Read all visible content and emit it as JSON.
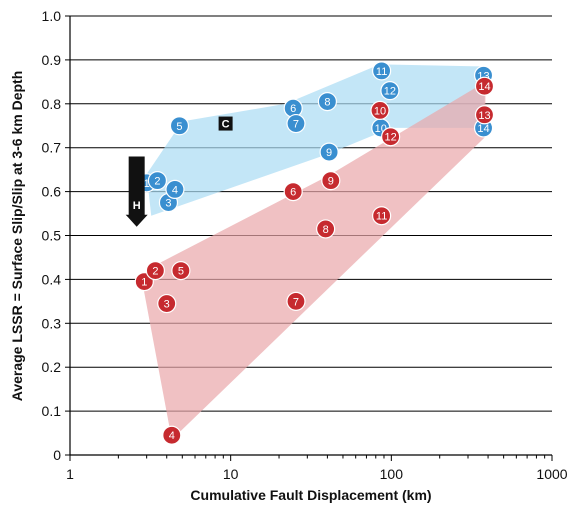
{
  "chart_data": {
    "type": "scatter",
    "xlabel": "Cumulative Fault Displacement (km)",
    "ylabel": "Average LSSR = Surface Slip/Slip at 3-6 km Depth",
    "x_scale": "log",
    "xlim": [
      1,
      1000
    ],
    "ylim": [
      0,
      1.0
    ],
    "x_ticks": [
      "1",
      "10",
      "100",
      "1000"
    ],
    "y_ticks": [
      "0",
      "0.1",
      "0.2",
      "0.3",
      "0.4",
      "0.5",
      "0.6",
      "0.7",
      "0.8",
      "0.9",
      "1.0"
    ],
    "grid": "horizontal",
    "series": [
      {
        "color": "#3a8fd0",
        "region_color": "#a9dcf3",
        "region_polygon": [
          {
            "x": 3.0,
            "y": 0.64
          },
          {
            "x": 5.0,
            "y": 0.76
          },
          {
            "x": 22,
            "y": 0.8
          },
          {
            "x": 85,
            "y": 0.89
          },
          {
            "x": 380,
            "y": 0.885
          },
          {
            "x": 380,
            "y": 0.745
          },
          {
            "x": 100,
            "y": 0.745
          },
          {
            "x": 40,
            "y": 0.685
          },
          {
            "x": 3.2,
            "y": 0.545
          }
        ],
        "points": [
          {
            "label": "1",
            "x": 3.0,
            "y": 0.62
          },
          {
            "label": "2",
            "x": 3.5,
            "y": 0.625
          },
          {
            "label": "3",
            "x": 4.1,
            "y": 0.575
          },
          {
            "label": "4",
            "x": 4.5,
            "y": 0.605
          },
          {
            "label": "5",
            "x": 4.8,
            "y": 0.75
          },
          {
            "label": "6",
            "x": 24.5,
            "y": 0.79
          },
          {
            "label": "7",
            "x": 25.5,
            "y": 0.755
          },
          {
            "label": "8",
            "x": 40,
            "y": 0.805
          },
          {
            "label": "9",
            "x": 41,
            "y": 0.69
          },
          {
            "label": "10",
            "x": 86,
            "y": 0.745
          },
          {
            "label": "11",
            "x": 87,
            "y": 0.875
          },
          {
            "label": "12",
            "x": 98,
            "y": 0.83
          },
          {
            "label": "13",
            "x": 375,
            "y": 0.865
          },
          {
            "label": "14",
            "x": 375,
            "y": 0.745
          }
        ]
      },
      {
        "color": "#c62a2f",
        "region_color": "#e9a6a9",
        "region_polygon": [
          {
            "x": 2.8,
            "y": 0.4
          },
          {
            "x": 3.3,
            "y": 0.43
          },
          {
            "x": 40,
            "y": 0.635
          },
          {
            "x": 385,
            "y": 0.85
          },
          {
            "x": 385,
            "y": 0.725
          },
          {
            "x": 4.3,
            "y": 0.035
          }
        ],
        "points": [
          {
            "label": "1",
            "x": 2.9,
            "y": 0.395
          },
          {
            "label": "2",
            "x": 3.4,
            "y": 0.42
          },
          {
            "label": "3",
            "x": 4.0,
            "y": 0.345
          },
          {
            "label": "4",
            "x": 4.3,
            "y": 0.045
          },
          {
            "label": "5",
            "x": 4.9,
            "y": 0.42
          },
          {
            "label": "6",
            "x": 24.5,
            "y": 0.6
          },
          {
            "label": "7",
            "x": 25.5,
            "y": 0.35
          },
          {
            "label": "8",
            "x": 39,
            "y": 0.515
          },
          {
            "label": "9",
            "x": 42,
            "y": 0.625
          },
          {
            "label": "10",
            "x": 85,
            "y": 0.785
          },
          {
            "label": "11",
            "x": 87,
            "y": 0.545
          },
          {
            "label": "12",
            "x": 99,
            "y": 0.725
          },
          {
            "label": "13",
            "x": 380,
            "y": 0.775
          },
          {
            "label": "14",
            "x": 380,
            "y": 0.84
          }
        ]
      }
    ],
    "annotations": [
      {
        "label": "C",
        "x": 9.3,
        "y": 0.755,
        "shape": "square"
      },
      {
        "label": "H",
        "x": 2.6,
        "y": 0.57,
        "shape": "down-arrow",
        "y_top": 0.68,
        "y_bottom": 0.52
      }
    ]
  }
}
